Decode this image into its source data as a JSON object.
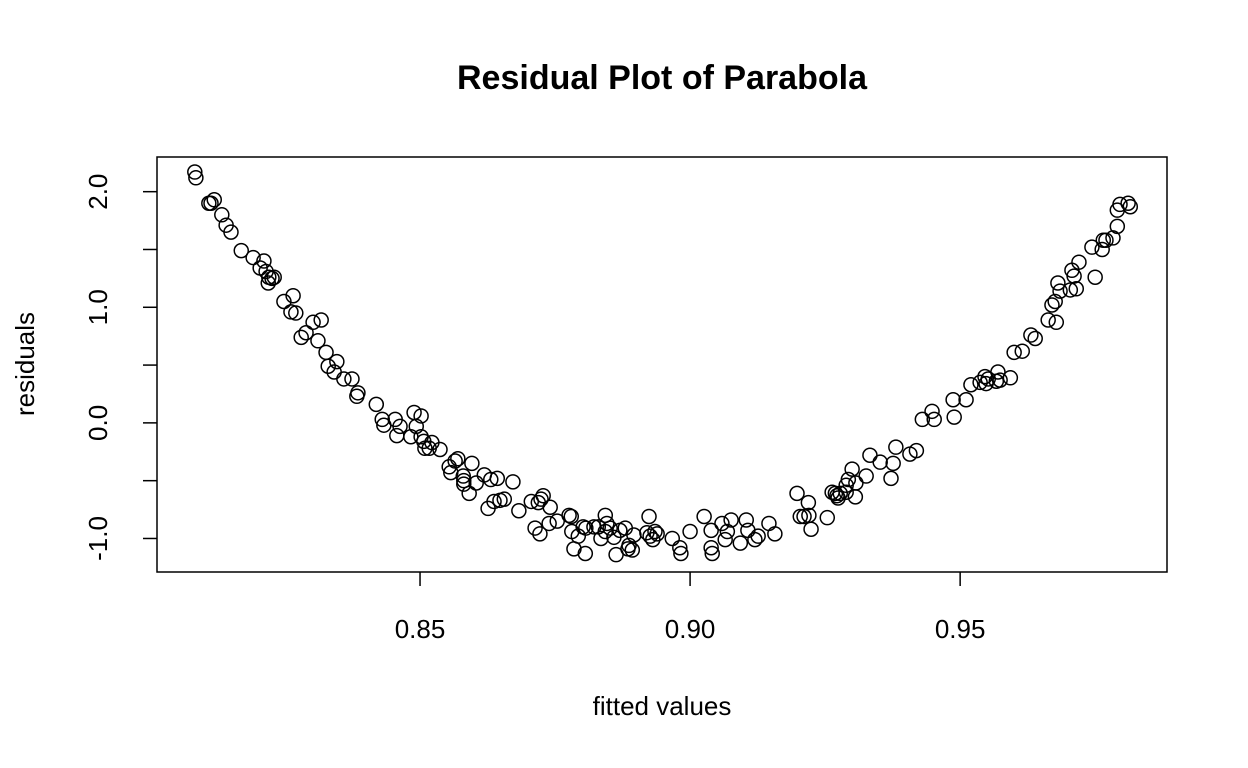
{
  "chart_data": {
    "type": "scatter",
    "title": "Residual Plot of Parabola",
    "x_label": "fitted values",
    "y_label": "residuals",
    "x": [
      0.8083,
      0.8085,
      0.8109,
      0.8113,
      0.8119,
      0.8133,
      0.8141,
      0.815,
      0.8169,
      0.8191,
      0.8204,
      0.8211,
      0.8215,
      0.8219,
      0.822,
      0.8226,
      0.823,
      0.8248,
      0.8261,
      0.8265,
      0.827,
      0.828,
      0.8289,
      0.8302,
      0.8311,
      0.8317,
      0.8326,
      0.833,
      0.8341,
      0.8346,
      0.8359,
      0.8374,
      0.8383,
      0.8385,
      0.8419,
      0.843,
      0.8433,
      0.8454,
      0.8457,
      0.8463,
      0.8483,
      0.8489,
      0.8493,
      0.8502,
      0.8502,
      0.8507,
      0.8509,
      0.8517,
      0.8522,
      0.8537,
      0.8554,
      0.8557,
      0.8565,
      0.857,
      0.858,
      0.8581,
      0.8581,
      0.8591,
      0.8596,
      0.8604,
      0.8619,
      0.8626,
      0.8631,
      0.8637,
      0.8643,
      0.8648,
      0.8656,
      0.8672,
      0.8683,
      0.8706,
      0.8713,
      0.8719,
      0.8722,
      0.8724,
      0.8728,
      0.8739,
      0.8741,
      0.8754,
      0.8776,
      0.878,
      0.8781,
      0.8785,
      0.8793,
      0.8802,
      0.8806,
      0.8807,
      0.8822,
      0.883,
      0.8835,
      0.8843,
      0.8843,
      0.8846,
      0.8852,
      0.8859,
      0.8863,
      0.887,
      0.888,
      0.8885,
      0.8887,
      0.8893,
      0.8896,
      0.892,
      0.8924,
      0.8926,
      0.8931,
      0.8935,
      0.8939,
      0.8967,
      0.8981,
      0.8983,
      0.9,
      0.9026,
      0.9039,
      0.9039,
      0.9041,
      0.9059,
      0.9065,
      0.9069,
      0.9076,
      0.9093,
      0.9104,
      0.9107,
      0.912,
      0.9126,
      0.9146,
      0.9157,
      0.9198,
      0.9204,
      0.9211,
      0.9219,
      0.922,
      0.9224,
      0.9254,
      0.9263,
      0.9269,
      0.9272,
      0.9274,
      0.9278,
      0.9289,
      0.9289,
      0.9293,
      0.93,
      0.9306,
      0.9307,
      0.9326,
      0.9333,
      0.9352,
      0.9372,
      0.9376,
      0.9381,
      0.9407,
      0.9419,
      0.943,
      0.9448,
      0.9452,
      0.9487,
      0.9489,
      0.9511,
      0.952,
      0.9537,
      0.9546,
      0.9548,
      0.9552,
      0.9567,
      0.957,
      0.9574,
      0.9593,
      0.96,
      0.9615,
      0.9631,
      0.9639,
      0.9663,
      0.967,
      0.9676,
      0.9678,
      0.9681,
      0.9685,
      0.9704,
      0.9707,
      0.9711,
      0.9715,
      0.972,
      0.9744,
      0.975,
      0.9763,
      0.9765,
      0.977,
      0.9783,
      0.9791,
      0.9791,
      0.9796,
      0.9811,
      0.9815
    ],
    "values": [
      2.17,
      2.12,
      1.9,
      1.9,
      1.93,
      1.8,
      1.71,
      1.65,
      1.49,
      1.43,
      1.34,
      1.4,
      1.31,
      1.21,
      1.26,
      1.25,
      1.26,
      1.05,
      0.96,
      1.1,
      0.95,
      0.74,
      0.78,
      0.87,
      0.71,
      0.89,
      0.61,
      0.49,
      0.44,
      0.53,
      0.38,
      0.38,
      0.23,
      0.26,
      0.16,
      0.03,
      -0.02,
      0.03,
      -0.11,
      -0.03,
      -0.12,
      0.09,
      -0.03,
      0.06,
      -0.12,
      -0.16,
      -0.22,
      -0.22,
      -0.17,
      -0.23,
      -0.38,
      -0.43,
      -0.33,
      -0.31,
      -0.46,
      -0.5,
      -0.53,
      -0.61,
      -0.35,
      -0.52,
      -0.45,
      -0.74,
      -0.49,
      -0.68,
      -0.48,
      -0.67,
      -0.66,
      -0.51,
      -0.76,
      -0.68,
      -0.91,
      -0.69,
      -0.96,
      -0.66,
      -0.63,
      -0.87,
      -0.73,
      -0.85,
      -0.8,
      -0.81,
      -0.94,
      -1.09,
      -0.98,
      -0.9,
      -1.13,
      -0.91,
      -0.9,
      -0.9,
      -1.0,
      -0.8,
      -0.94,
      -0.87,
      -0.91,
      -0.99,
      -1.14,
      -0.93,
      -0.91,
      -1.09,
      -1.06,
      -1.1,
      -0.97,
      -0.95,
      -0.81,
      -0.98,
      -1.01,
      -0.94,
      -0.96,
      -1.0,
      -1.08,
      -1.13,
      -0.94,
      -0.81,
      -0.93,
      -1.08,
      -1.13,
      -0.87,
      -1.01,
      -0.94,
      -0.84,
      -1.04,
      -0.84,
      -0.93,
      -1.01,
      -0.98,
      -0.87,
      -0.96,
      -0.61,
      -0.81,
      -0.81,
      -0.69,
      -0.8,
      -0.92,
      -0.82,
      -0.6,
      -0.61,
      -0.63,
      -0.65,
      -0.61,
      -0.54,
      -0.6,
      -0.49,
      -0.4,
      -0.64,
      -0.52,
      -0.46,
      -0.28,
      -0.34,
      -0.48,
      -0.35,
      -0.21,
      -0.27,
      -0.24,
      0.03,
      0.1,
      0.03,
      0.2,
      0.05,
      0.2,
      0.33,
      0.35,
      0.4,
      0.34,
      0.38,
      0.36,
      0.44,
      0.37,
      0.39,
      0.61,
      0.62,
      0.76,
      0.73,
      0.89,
      1.02,
      1.05,
      0.87,
      1.21,
      1.14,
      1.15,
      1.32,
      1.27,
      1.16,
      1.39,
      1.52,
      1.26,
      1.5,
      1.58,
      1.58,
      1.6,
      1.7,
      1.84,
      1.89,
      1.9,
      1.87
    ],
    "color": "#000000",
    "xlim": [
      0.8013,
      0.9883
    ],
    "ylim": [
      -1.29,
      2.3
    ],
    "xticks": [
      0.85,
      {
        "value": 0.9,
        "label": "0.90"
      },
      0.95
    ],
    "yticks": [
      {
        "value": -1,
        "label": "-1.0"
      },
      {
        "value": 0,
        "label": "0.0"
      },
      {
        "value": 1,
        "label": "1.0"
      },
      {
        "value": 2,
        "label": "2.0"
      }
    ],
    "y_minor_ticks": [
      -0.5,
      0.5,
      1.5
    ],
    "grid": false
  }
}
